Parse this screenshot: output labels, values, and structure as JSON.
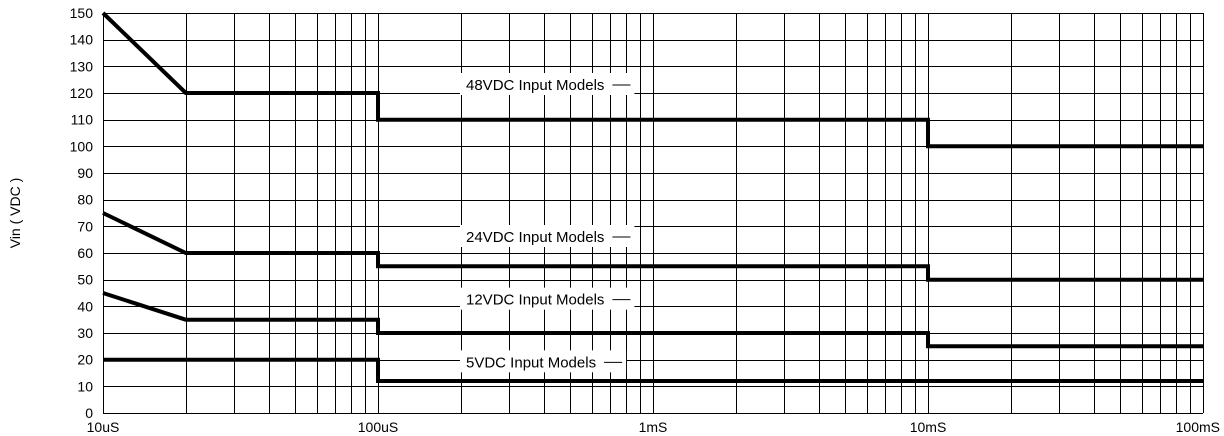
{
  "chart_data": {
    "type": "line",
    "title": "",
    "xlabel": "",
    "ylabel": "Vin ( VDC )",
    "xscale": "log",
    "xlim_seconds": [
      1e-05,
      0.1
    ],
    "ylim": [
      0,
      150
    ],
    "x_tick_values_seconds": [
      1e-05,
      0.0001,
      0.001,
      0.01,
      0.1
    ],
    "x_tick_labels": [
      "10uS",
      "100uS",
      "1mS",
      "10mS",
      "100mS"
    ],
    "y_ticks": [
      0,
      10,
      20,
      30,
      40,
      50,
      60,
      70,
      80,
      90,
      100,
      110,
      120,
      130,
      140,
      150
    ],
    "grid": true,
    "legend": "inline labels with leader lines",
    "series": [
      {
        "name": "48VDC Input Models",
        "points_seconds_vdc": [
          [
            1e-05,
            150
          ],
          [
            2e-05,
            120
          ],
          [
            0.0001,
            120
          ],
          [
            0.0001,
            110
          ],
          [
            0.01,
            110
          ],
          [
            0.01,
            100
          ],
          [
            0.1,
            100
          ]
        ]
      },
      {
        "name": "24VDC Input Models",
        "points_seconds_vdc": [
          [
            1e-05,
            75
          ],
          [
            2e-05,
            60
          ],
          [
            0.0001,
            60
          ],
          [
            0.0001,
            55
          ],
          [
            0.01,
            55
          ],
          [
            0.01,
            50
          ],
          [
            0.1,
            50
          ]
        ]
      },
      {
        "name": "12VDC Input Models",
        "points_seconds_vdc": [
          [
            1e-05,
            45
          ],
          [
            2e-05,
            35
          ],
          [
            0.0001,
            35
          ],
          [
            0.0001,
            30
          ],
          [
            0.01,
            30
          ],
          [
            0.01,
            25
          ],
          [
            0.1,
            25
          ]
        ]
      },
      {
        "name": "5VDC Input Models",
        "points_seconds_vdc": [
          [
            1e-05,
            20
          ],
          [
            0.0001,
            20
          ],
          [
            0.0001,
            12
          ],
          [
            0.1,
            12
          ]
        ]
      }
    ]
  }
}
